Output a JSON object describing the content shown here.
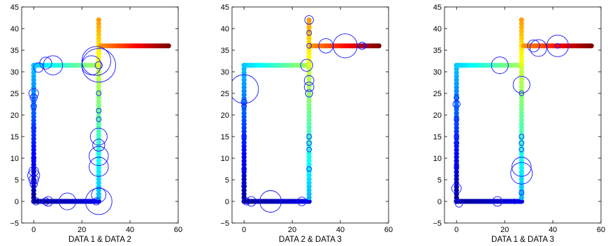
{
  "chart_data": [
    {
      "type": "scatter",
      "xlabel": "DATA 1 & DATA 2",
      "xlim": [
        -5,
        60
      ],
      "ylim": [
        -5,
        45
      ],
      "xticks": [
        0,
        20,
        40,
        60
      ],
      "yticks": [
        -5,
        0,
        5,
        10,
        15,
        20,
        25,
        30,
        35,
        40,
        45
      ],
      "colormap": "jet",
      "circle_color": "#1414ff",
      "circles": [
        {
          "x": 0,
          "y": 25,
          "r": 2
        },
        {
          "x": 0,
          "y": 24,
          "r": 1.5
        },
        {
          "x": 0,
          "y": 22,
          "r": 1.2
        },
        {
          "x": 2,
          "y": 31,
          "r": 2
        },
        {
          "x": 5,
          "y": 32,
          "r": 2.5
        },
        {
          "x": 8,
          "y": 31.5,
          "r": 4
        },
        {
          "x": 24,
          "y": 31.5,
          "r": 4
        },
        {
          "x": 26,
          "y": 32.5,
          "r": 6
        },
        {
          "x": 27,
          "y": 31.5,
          "r": 7
        },
        {
          "x": 27,
          "y": 31.5,
          "r": 1.5
        },
        {
          "x": 27,
          "y": 25,
          "r": 1
        },
        {
          "x": 27,
          "y": 21,
          "r": 1
        },
        {
          "x": 27,
          "y": 19,
          "r": 1
        },
        {
          "x": 27,
          "y": 15,
          "r": 3.5
        },
        {
          "x": 27,
          "y": 13,
          "r": 2.5
        },
        {
          "x": 27,
          "y": 10.5,
          "r": 4
        },
        {
          "x": 27,
          "y": 8,
          "r": 4
        },
        {
          "x": 27,
          "y": 1.5,
          "r": 3
        },
        {
          "x": 27,
          "y": 0,
          "r": 5.5
        },
        {
          "x": 26,
          "y": 0,
          "r": 1.5
        },
        {
          "x": 14,
          "y": 0,
          "r": 3.5
        },
        {
          "x": 6,
          "y": 0,
          "r": 2
        },
        {
          "x": 5,
          "y": 0,
          "r": 1.5
        },
        {
          "x": 1,
          "y": 0,
          "r": 1.5
        },
        {
          "x": 0,
          "y": 4,
          "r": 1.5
        },
        {
          "x": 0,
          "y": 5,
          "r": 2
        },
        {
          "x": 0,
          "y": 6,
          "r": 2.5
        },
        {
          "x": 0,
          "y": 7,
          "r": 2
        },
        {
          "x": 0,
          "y": 10,
          "r": 1
        },
        {
          "x": 0,
          "y": 17,
          "r": 1
        }
      ]
    },
    {
      "type": "scatter",
      "xlabel": "DATA 2 & DATA 3",
      "xlim": [
        -5,
        60
      ],
      "ylim": [
        -5,
        45
      ],
      "xticks": [
        0,
        20,
        40,
        60
      ],
      "yticks": [
        -5,
        0,
        5,
        10,
        15,
        20,
        25,
        30,
        35,
        40,
        45
      ],
      "colormap": "jet",
      "circle_color": "#1414ff",
      "circles": [
        {
          "x": 0,
          "y": 26,
          "r": 6
        },
        {
          "x": 0,
          "y": 23,
          "r": 1.2
        },
        {
          "x": 0,
          "y": 22,
          "r": 1
        },
        {
          "x": 0,
          "y": 15,
          "r": 1
        },
        {
          "x": 0,
          "y": 7.5,
          "r": 1
        },
        {
          "x": 0,
          "y": 3.5,
          "r": 1
        },
        {
          "x": 1,
          "y": 0,
          "r": 1.5
        },
        {
          "x": 3,
          "y": 0,
          "r": 2
        },
        {
          "x": 11,
          "y": 0,
          "r": 4.5
        },
        {
          "x": 24,
          "y": 0,
          "r": 1.8
        },
        {
          "x": 26,
          "y": 31.5,
          "r": 2.5
        },
        {
          "x": 27,
          "y": 42,
          "r": 1.8
        },
        {
          "x": 27,
          "y": 39,
          "r": 1
        },
        {
          "x": 27,
          "y": 36,
          "r": 1
        },
        {
          "x": 27,
          "y": 28,
          "r": 2
        },
        {
          "x": 27,
          "y": 26.5,
          "r": 2
        },
        {
          "x": 27,
          "y": 25,
          "r": 1.5
        },
        {
          "x": 27,
          "y": 15,
          "r": 1
        },
        {
          "x": 27,
          "y": 13.5,
          "r": 1
        },
        {
          "x": 27,
          "y": 12,
          "r": 1
        },
        {
          "x": 27,
          "y": 7.5,
          "r": 1
        },
        {
          "x": 34,
          "y": 36,
          "r": 3
        },
        {
          "x": 42,
          "y": 36,
          "r": 5
        },
        {
          "x": 49,
          "y": 36,
          "r": 1.5
        },
        {
          "x": 50,
          "y": 36,
          "r": 1
        }
      ]
    },
    {
      "type": "scatter",
      "xlabel": "DATA 1 & DATA 3",
      "xlim": [
        -5,
        60
      ],
      "ylim": [
        -5,
        45
      ],
      "xticks": [
        0,
        20,
        40,
        60
      ],
      "yticks": [
        -5,
        0,
        5,
        10,
        15,
        20,
        25,
        30,
        35,
        40,
        45
      ],
      "colormap": "jet",
      "circle_color": "#1414ff",
      "circles": [
        {
          "x": 0,
          "y": 24,
          "r": 1
        },
        {
          "x": 0,
          "y": 22.5,
          "r": 1.5
        },
        {
          "x": 0,
          "y": 19,
          "r": 1
        },
        {
          "x": 0,
          "y": 15,
          "r": 1
        },
        {
          "x": 0,
          "y": 13.5,
          "r": 1
        },
        {
          "x": 0,
          "y": 8,
          "r": 1
        },
        {
          "x": 0,
          "y": 3,
          "r": 2
        },
        {
          "x": 0,
          "y": 0,
          "r": 1
        },
        {
          "x": 1,
          "y": -0.5,
          "r": 1.5
        },
        {
          "x": 18,
          "y": 31.5,
          "r": 3.5
        },
        {
          "x": 17,
          "y": 0,
          "r": 2
        },
        {
          "x": 24,
          "y": 0,
          "r": 1
        },
        {
          "x": 27,
          "y": 27,
          "r": 3.5
        },
        {
          "x": 27,
          "y": 25,
          "r": 1
        },
        {
          "x": 27,
          "y": 15,
          "r": 1
        },
        {
          "x": 27,
          "y": 13.5,
          "r": 1
        },
        {
          "x": 27,
          "y": 12,
          "r": 1
        },
        {
          "x": 27,
          "y": 8,
          "r": 4
        },
        {
          "x": 27,
          "y": 6.5,
          "r": 4.5
        },
        {
          "x": 27,
          "y": 2,
          "r": 1
        },
        {
          "x": 32,
          "y": 36,
          "r": 2.5
        },
        {
          "x": 34,
          "y": 35.5,
          "r": 3.5
        },
        {
          "x": 42,
          "y": 36,
          "r": 4.5
        },
        {
          "x": 42,
          "y": 36,
          "r": 1
        }
      ]
    }
  ]
}
